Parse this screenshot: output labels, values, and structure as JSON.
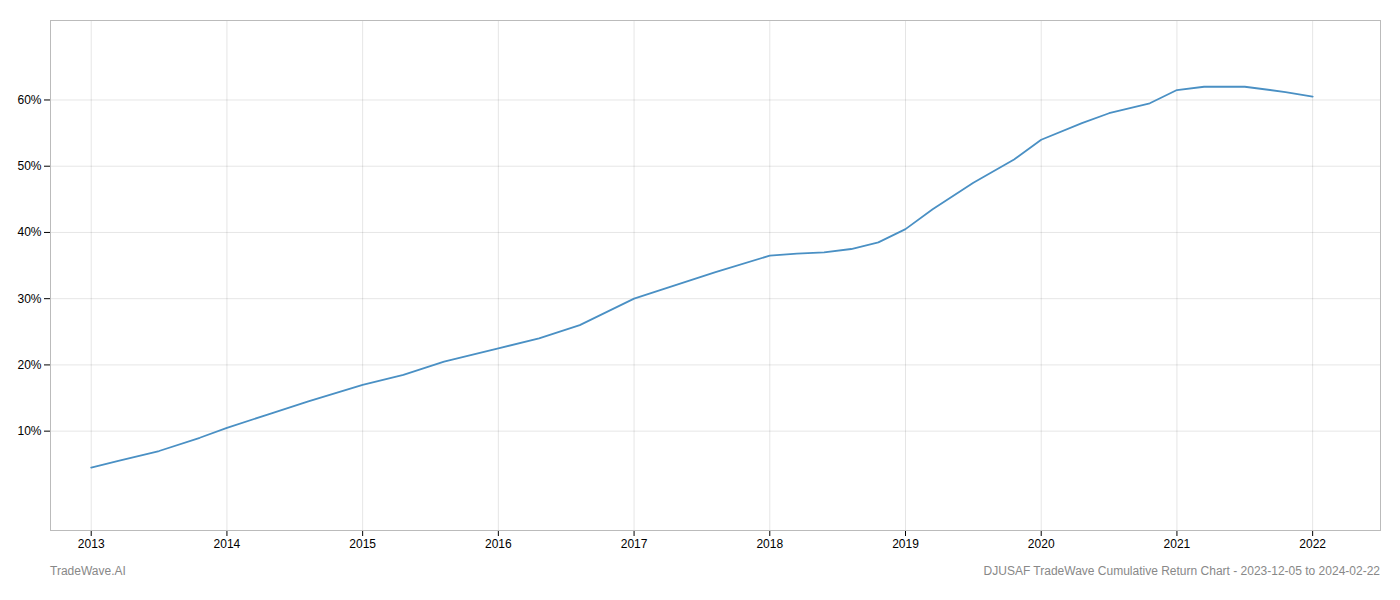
{
  "chart_data": {
    "type": "line",
    "x": [
      2013.0,
      2013.2,
      2013.5,
      2013.8,
      2014.0,
      2014.3,
      2014.6,
      2015.0,
      2015.3,
      2015.6,
      2016.0,
      2016.3,
      2016.6,
      2017.0,
      2017.3,
      2017.6,
      2018.0,
      2018.2,
      2018.4,
      2018.6,
      2018.8,
      2019.0,
      2019.2,
      2019.5,
      2019.8,
      2020.0,
      2020.3,
      2020.5,
      2020.8,
      2021.0,
      2021.2,
      2021.5,
      2021.8,
      2022.0
    ],
    "values": [
      4.5,
      5.5,
      7.0,
      9.0,
      10.5,
      12.5,
      14.5,
      17.0,
      18.5,
      20.5,
      22.5,
      24.0,
      26.0,
      30.0,
      32.0,
      34.0,
      36.5,
      36.8,
      37.0,
      37.5,
      38.5,
      40.5,
      43.5,
      47.5,
      51.0,
      54.0,
      56.5,
      58.0,
      59.5,
      61.5,
      62.0,
      62.0,
      61.2,
      60.5
    ],
    "color": "#4a90c4",
    "xlim": [
      2012.7,
      2022.5
    ],
    "ylim": [
      -5,
      72
    ],
    "xticks": [
      2013,
      2014,
      2015,
      2016,
      2017,
      2018,
      2019,
      2020,
      2021,
      2022
    ],
    "yticks": [
      {
        "value": 10,
        "label": "10%"
      },
      {
        "value": 20,
        "label": "20%"
      },
      {
        "value": 30,
        "label": "30%"
      },
      {
        "value": 40,
        "label": "40%"
      },
      {
        "value": 50,
        "label": "50%"
      },
      {
        "value": 60,
        "label": "60%"
      }
    ],
    "grid": true,
    "annotations": [
      "TradeWave.AI",
      "DJUSAF TradeWave Cumulative Return Chart - 2023-12-05 to 2024-02-22"
    ]
  }
}
